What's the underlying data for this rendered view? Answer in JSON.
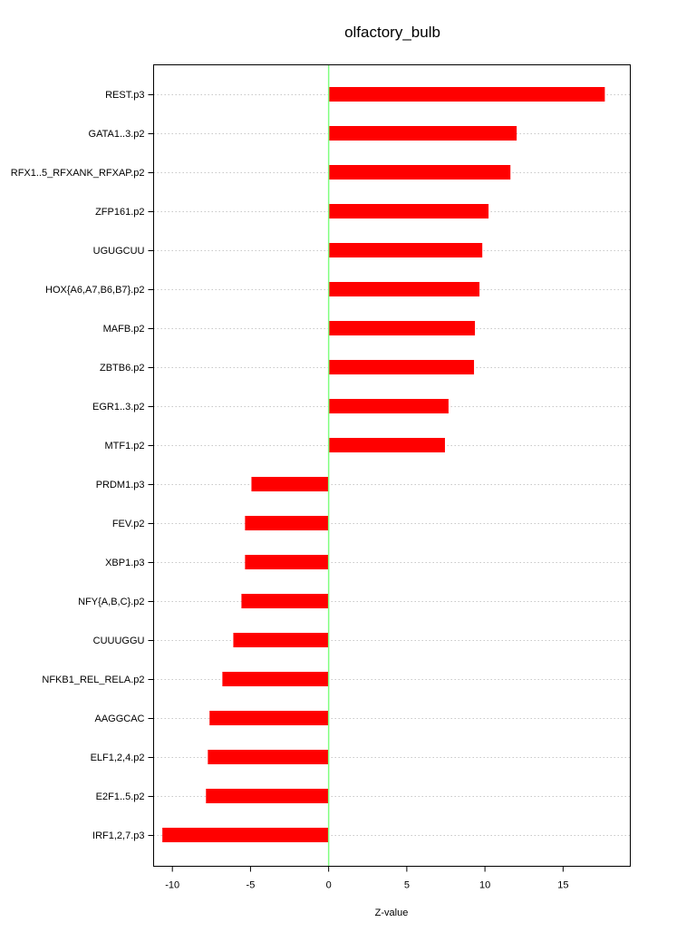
{
  "chart_data": {
    "type": "bar",
    "orientation": "horizontal",
    "title": "olfactory_bulb",
    "xlabel": "Z-value",
    "ylabel": "",
    "xlim": [
      -11.2,
      19.3
    ],
    "xticks": [
      -10,
      -5,
      0,
      5,
      10,
      15
    ],
    "xtick_labels": [
      "-10",
      "-5",
      "0",
      "5",
      "10",
      "15"
    ],
    "grid": "horizontal dotted",
    "bar_color": "#ff0000",
    "zero_line_color": "#80ff80",
    "categories": [
      "REST.p3",
      "GATA1..3.p2",
      "RFX1..5_RFXANK_RFXAP.p2",
      "ZFP161.p2",
      "UGUGCUU",
      "HOX{A6,A7,B6,B7}.p2",
      "MAFB.p2",
      "ZBTB6.p2",
      "EGR1..3.p2",
      "MTF1.p2",
      "PRDM1.p3",
      "FEV.p2",
      "XBP1.p3",
      "NFY{A,B,C}.p2",
      "CUUUGGU",
      "NFKB1_REL_RELA.p2",
      "AAGGCAC",
      "ELF1,2,4.p2",
      "E2F1..5.p2",
      "IRF1,2,7.p3"
    ],
    "values": [
      17.67,
      12.03,
      11.63,
      10.23,
      9.83,
      9.65,
      9.36,
      9.3,
      7.67,
      7.44,
      -4.94,
      -5.35,
      -5.35,
      -5.58,
      -6.1,
      -6.8,
      -7.62,
      -7.73,
      -7.85,
      -10.64
    ]
  }
}
